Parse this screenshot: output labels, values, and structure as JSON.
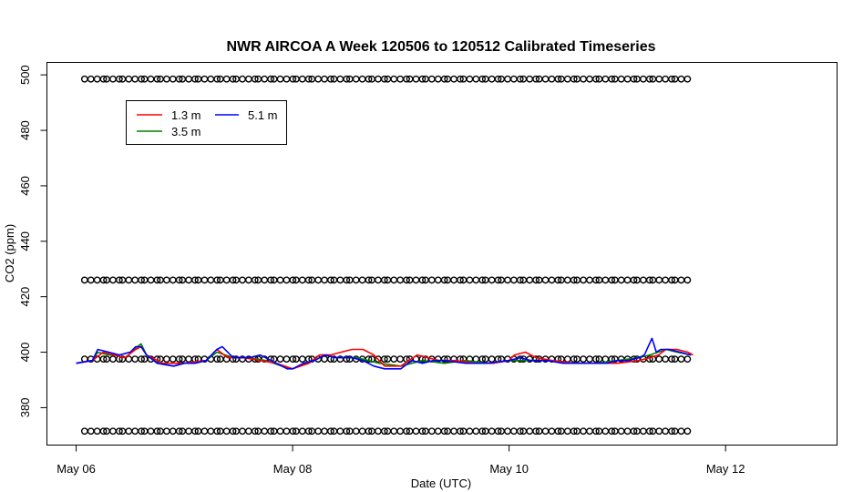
{
  "chart_data": {
    "type": "line",
    "title": "NWR AIRCOA A  Week 120506 to 120512  Calibrated Timeseries",
    "xlabel": "Date (UTC)",
    "ylabel": "CO2 (ppm)",
    "x_ticks": [
      "May 06",
      "May 08",
      "May 10",
      "May 12"
    ],
    "x_tick_days": [
      0,
      2,
      4,
      6
    ],
    "xlim_days": [
      -0.27,
      7.03
    ],
    "y_ticks": [
      380,
      400,
      420,
      440,
      460,
      480,
      500
    ],
    "ylim": [
      366.5,
      504.5
    ],
    "grid": false,
    "legend": {
      "placement": "top-left",
      "entries": [
        {
          "label": "1.3 m",
          "color": "#ff0000"
        },
        {
          "label": "5.1 m",
          "color": "#0000ff"
        },
        {
          "label": "3.5 m",
          "color": "#008000"
        }
      ]
    },
    "series": [
      {
        "name": "1.3 m",
        "color": "#ff0000",
        "x_days": [
          0.0,
          0.15,
          0.25,
          0.35,
          0.45,
          0.55,
          0.6,
          0.65,
          0.8,
          1.0,
          1.2,
          1.3,
          1.4,
          1.55,
          1.7,
          1.85,
          2.0,
          2.15,
          2.25,
          2.35,
          2.45,
          2.55,
          2.65,
          2.75,
          2.85,
          3.0,
          3.15,
          3.25,
          3.35,
          3.5,
          3.7,
          3.85,
          4.0,
          4.05,
          4.15,
          4.25,
          4.4,
          4.6,
          4.8,
          5.0,
          5.2,
          5.3,
          5.38,
          5.45,
          5.55,
          5.65,
          5.7
        ],
        "values": [
          396,
          397,
          400,
          399,
          398,
          401,
          402,
          399,
          396,
          396,
          397,
          401,
          398,
          398,
          397,
          396,
          394,
          396,
          399,
          399,
          400,
          401,
          401,
          399,
          395,
          395,
          399,
          398,
          397,
          397,
          396,
          396,
          397,
          399,
          400,
          398,
          397,
          396,
          396,
          396,
          397,
          398,
          399,
          401,
          401,
          400,
          399
        ]
      },
      {
        "name": "5.1 m",
        "color": "#0000ff",
        "x_days": [
          0.0,
          0.15,
          0.2,
          0.3,
          0.4,
          0.5,
          0.55,
          0.6,
          0.65,
          0.75,
          0.9,
          1.0,
          1.1,
          1.2,
          1.3,
          1.35,
          1.45,
          1.6,
          1.7,
          1.8,
          1.9,
          1.95,
          2.0,
          2.1,
          2.2,
          2.3,
          2.4,
          2.55,
          2.65,
          2.75,
          2.85,
          3.0,
          3.1,
          3.2,
          3.3,
          3.4,
          3.6,
          3.8,
          4.0,
          4.1,
          4.2,
          4.35,
          4.5,
          4.7,
          4.9,
          5.0,
          5.1,
          5.2,
          5.25,
          5.32,
          5.36,
          5.4,
          5.48,
          5.58,
          5.68
        ],
        "values": [
          396,
          397,
          401,
          400,
          399,
          400,
          402,
          402,
          399,
          396,
          395,
          396,
          396,
          397,
          401,
          402,
          398,
          398,
          399,
          397,
          395,
          394,
          394,
          396,
          397,
          399,
          398,
          398,
          397,
          395,
          394,
          394,
          397,
          396,
          397,
          397,
          396,
          396,
          397,
          398,
          397,
          397,
          396,
          396,
          396,
          397,
          397,
          398,
          399,
          405,
          400,
          401,
          401,
          400,
          399
        ]
      },
      {
        "name": "3.5 m",
        "color": "#008000",
        "x_days": [
          0.0,
          0.15,
          0.2,
          0.3,
          0.4,
          0.5,
          0.6,
          0.65,
          0.75,
          0.9,
          1.0,
          1.2,
          1.3,
          1.45,
          1.6,
          1.75,
          1.9,
          2.0,
          2.2,
          2.3,
          2.4,
          2.6,
          2.8,
          3.0,
          3.2,
          3.4,
          3.6,
          3.8,
          4.0,
          4.2,
          4.4,
          4.6,
          4.8,
          5.0,
          5.2,
          5.3,
          5.45,
          5.55,
          5.68
        ],
        "values": [
          396,
          397,
          400,
          399,
          399,
          400,
          403,
          399,
          396,
          395,
          396,
          397,
          400,
          398,
          398,
          397,
          395,
          394,
          397,
          399,
          398,
          398,
          396,
          395,
          397,
          396,
          397,
          396,
          397,
          397,
          397,
          396,
          396,
          397,
          398,
          399,
          401,
          400,
          399
        ]
      },
      {
        "name": "",
        "type": "scatter",
        "marker": "open-circle",
        "color": "#000000",
        "levels_ppm": [
          371.5,
          397.5,
          426,
          498.5
        ],
        "x_start_day": 0.09,
        "x_end_day": 5.68,
        "x_step_day": 0.05
      }
    ]
  }
}
